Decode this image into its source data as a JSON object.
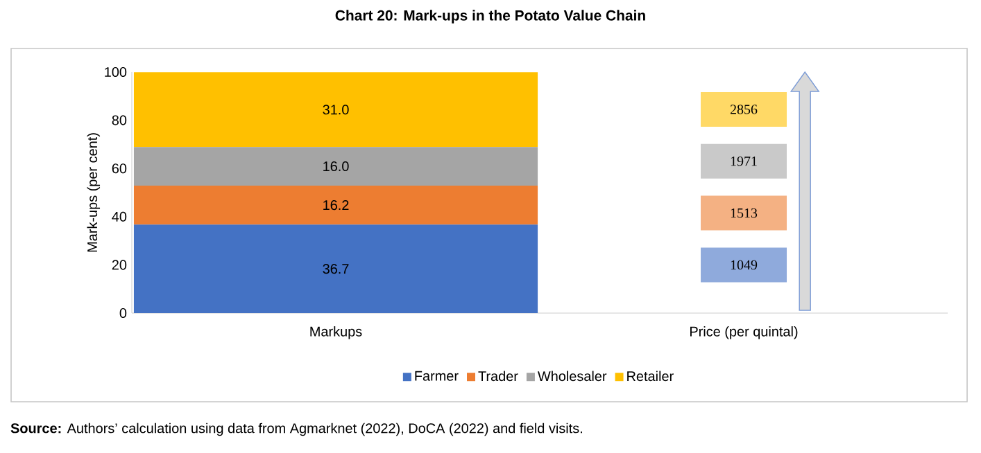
{
  "chart_data": {
    "type": "bar",
    "title": "Chart 20: Mark-ups in the Potato Value Chain",
    "ylabel": "Mark-ups (per cent)",
    "categories": [
      "Markups",
      "Price (per quintal)"
    ],
    "series": [
      {
        "name": "Farmer",
        "color": "#4472c4",
        "values": [
          36.7,
          null
        ],
        "value_labels": [
          "36.7",
          null
        ]
      },
      {
        "name": "Trader",
        "color": "#ed7d31",
        "values": [
          16.2,
          null
        ],
        "value_labels": [
          "16.2",
          null
        ]
      },
      {
        "name": "Wholesaler",
        "color": "#a5a5a5",
        "values": [
          16.0,
          null
        ],
        "value_labels": [
          "16.0",
          null
        ]
      },
      {
        "name": "Retailer",
        "color": "#ffc000",
        "values": [
          31.0,
          null
        ],
        "value_labels": [
          "31.0",
          null
        ]
      }
    ],
    "stacked": true,
    "ylim": [
      0,
      100
    ],
    "yticks": [
      0,
      20,
      40,
      60,
      80,
      100
    ],
    "grid": false,
    "legend": "bottom",
    "annotations": [
      "1049",
      "1513",
      "1971",
      "2856",
      "**Source:** Authors’ calculation using data from Agmarknet (2022), DoCA (2022) and field visits."
    ]
  }
}
